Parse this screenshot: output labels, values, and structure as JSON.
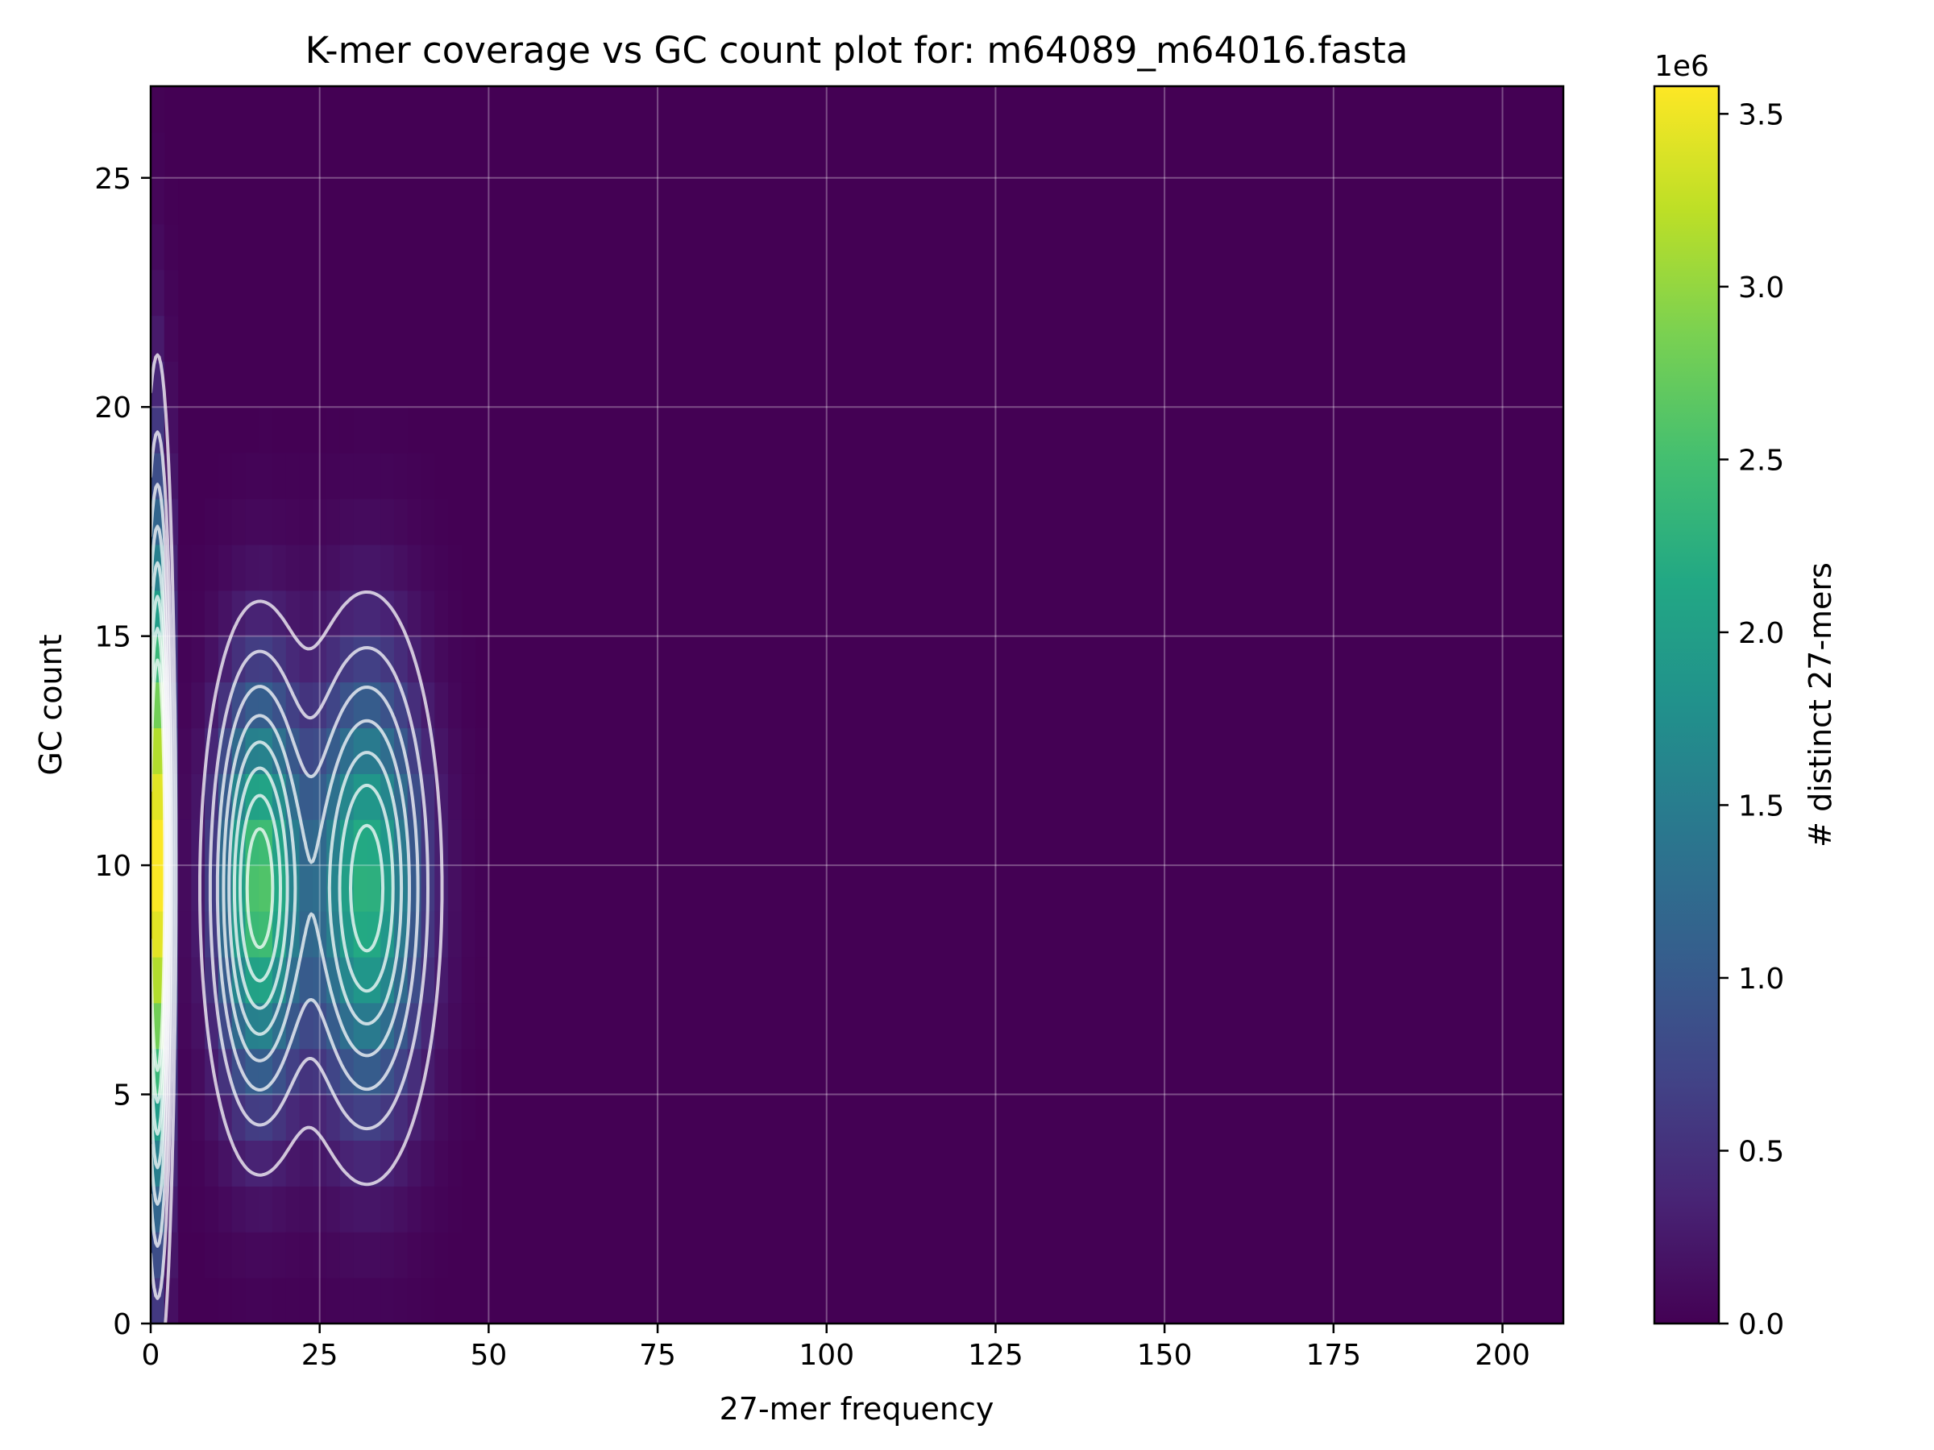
{
  "chart_data": {
    "type": "heatmap",
    "title": "K-mer coverage vs GC count plot for: m64089_m64016.fasta",
    "xlabel": "27-mer frequency",
    "ylabel": "GC count",
    "xlim": [
      0,
      209
    ],
    "ylim": [
      0,
      27
    ],
    "x_ticks": [
      0,
      25,
      50,
      75,
      100,
      125,
      150,
      175,
      200
    ],
    "y_ticks": [
      0,
      5,
      10,
      15,
      20,
      25
    ],
    "grid": true,
    "colormap": "viridis",
    "colorbar": {
      "label": "# distinct 27-mers",
      "offset_text": "1e6",
      "range": [
        0,
        3.58
      ],
      "ticks": [
        "0.0",
        "0.5",
        "1.0",
        "1.5",
        "2.0",
        "2.5",
        "3.0",
        "3.5"
      ]
    },
    "peaks": [
      {
        "x": 1,
        "y": 10,
        "value": 3.58,
        "x_spread": 1.2,
        "y_spread": 5.0
      },
      {
        "x": 16,
        "y": 9.5,
        "value": 2.6,
        "x_spread": 4.2,
        "y_spread": 3.0
      },
      {
        "x": 32,
        "y": 9.5,
        "value": 2.3,
        "x_spread": 5.5,
        "y_spread": 3.2
      }
    ],
    "contour_color": "#ffffff",
    "colors": {
      "low": "#440154",
      "high": "#fde725",
      "grid": "#b9a8c7"
    }
  }
}
